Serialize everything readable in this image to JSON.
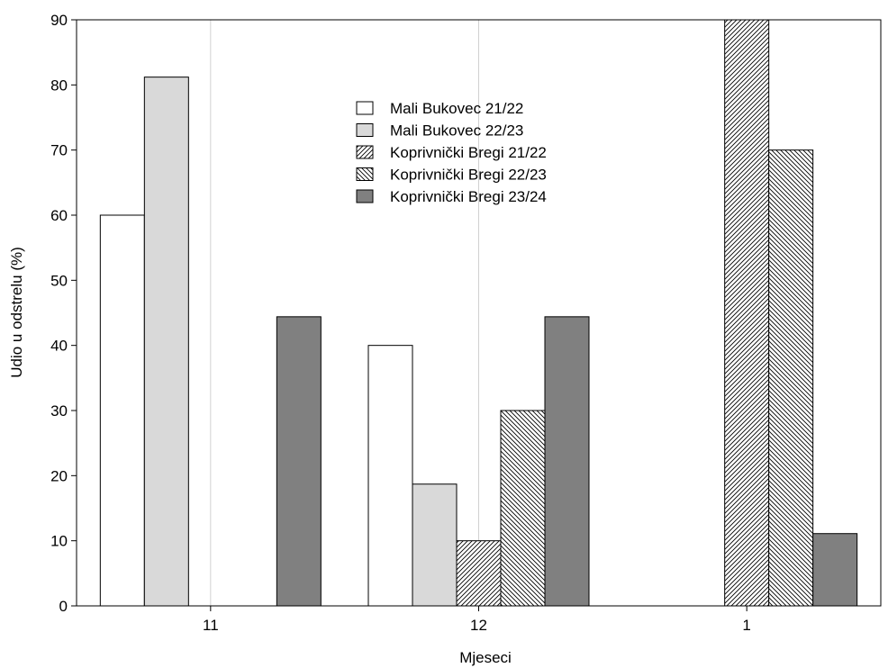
{
  "chart_data": {
    "type": "bar",
    "xlabel": "Mjeseci",
    "ylabel": "Udio u odstrelu (%)",
    "ylim": [
      0,
      90
    ],
    "yticks": [
      "0",
      "10",
      "20",
      "30",
      "40",
      "50",
      "60",
      "70",
      "80",
      "90"
    ],
    "categories": [
      "11",
      "12",
      "1"
    ],
    "grid": true,
    "legend_position": "top-center",
    "series": [
      {
        "name": "Mali Bukovec 21/22",
        "values": [
          60,
          40,
          0
        ],
        "fill": "#ffffff",
        "pattern": "none"
      },
      {
        "name": "Mali Bukovec 22/23",
        "values": [
          81.2,
          18.7,
          0
        ],
        "fill": "#d9d9d9",
        "pattern": "none"
      },
      {
        "name": "Koprivnički Bregi 21/22",
        "values": [
          0,
          10,
          90
        ],
        "fill": "#ffffff",
        "pattern": "diagonal-up"
      },
      {
        "name": "Koprivnički Bregi 22/23",
        "values": [
          0,
          30,
          70
        ],
        "fill": "#ffffff",
        "pattern": "diagonal-down"
      },
      {
        "name": "Koprivnički Bregi 23/24",
        "values": [
          44.4,
          44.4,
          11.1
        ],
        "fill": "#808080",
        "pattern": "none"
      }
    ]
  }
}
